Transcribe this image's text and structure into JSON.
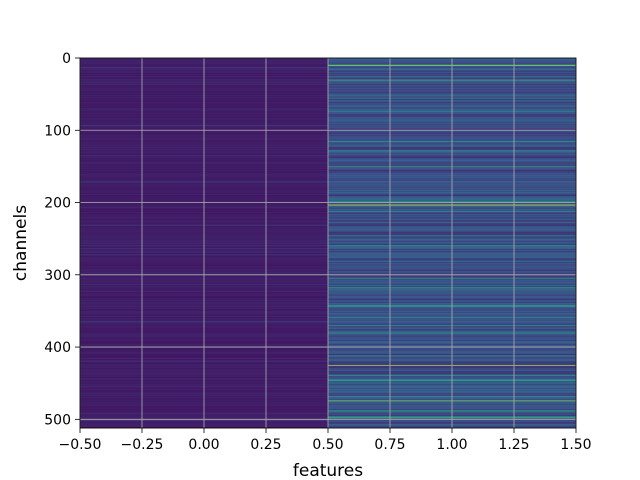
{
  "chart_data": {
    "type": "heatmap",
    "title": "",
    "xlabel": "features",
    "ylabel": "channels",
    "xlim": [
      -0.5,
      1.5
    ],
    "ylim": [
      512,
      0
    ],
    "x_ticks": [
      -0.5,
      -0.25,
      0.0,
      0.25,
      0.5,
      0.75,
      1.0,
      1.25,
      1.5
    ],
    "x_tick_labels": [
      "−0.50",
      "−0.25",
      "0.00",
      "0.25",
      "0.50",
      "0.75",
      "1.00",
      "1.25",
      "1.50"
    ],
    "y_ticks": [
      0,
      100,
      200,
      300,
      400,
      500
    ],
    "y_tick_labels": [
      "0",
      "100",
      "200",
      "300",
      "400",
      "500"
    ],
    "colormap": "viridis",
    "grid": true,
    "rows": 512,
    "columns": [
      {
        "x": 0,
        "typical_value": 0.06
      },
      {
        "x": 1,
        "typical_value": 0.25
      }
    ],
    "highlighted_rows_column_1": [
      {
        "channel": 10,
        "value": 0.82
      },
      {
        "channel": 30,
        "value": 0.65
      },
      {
        "channel": 128,
        "value": 0.55
      },
      {
        "channel": 150,
        "value": 0.6
      },
      {
        "channel": 203,
        "value": 0.95
      },
      {
        "channel": 343,
        "value": 0.55
      },
      {
        "channel": 425,
        "value": 0.85
      },
      {
        "channel": 446,
        "value": 0.55
      },
      {
        "channel": 474,
        "value": 0.8
      },
      {
        "channel": 497,
        "value": 0.6
      }
    ]
  }
}
